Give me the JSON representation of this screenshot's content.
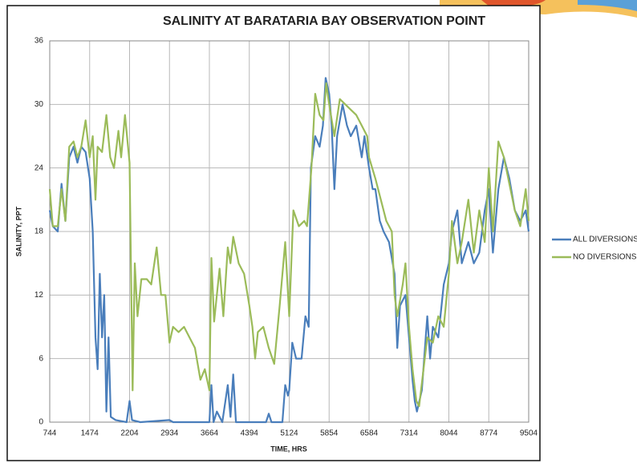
{
  "chart_data": {
    "type": "line",
    "title": "SALINITY AT BARATARIA BAY OBSERVATION POINT",
    "x_label": "TIME, HRS",
    "y_label": "SALINITY, PPT",
    "xlim": [
      744,
      9504
    ],
    "xticks": [
      744,
      1474,
      2204,
      2934,
      3664,
      4394,
      5124,
      5854,
      6584,
      7314,
      8044,
      8774,
      9504
    ],
    "ylim": [
      0,
      36
    ],
    "yticks": [
      0,
      6,
      12,
      18,
      24,
      30,
      36
    ],
    "grid": true,
    "legend": "right",
    "series": [
      {
        "name": "ALL DIVERSIONS",
        "color": "#4a7ebb",
        "x": [
          744,
          800,
          890,
          960,
          1030,
          1100,
          1180,
          1250,
          1320,
          1400,
          1474,
          1530,
          1580,
          1620,
          1660,
          1700,
          1740,
          1780,
          1820,
          1860,
          1950,
          2050,
          2150,
          2204,
          2250,
          2400,
          2934,
          3000,
          3600,
          3664,
          3700,
          3740,
          3800,
          3900,
          4000,
          4050,
          4100,
          4150,
          4394,
          4700,
          4750,
          4800,
          5000,
          5050,
          5100,
          5124,
          5180,
          5250,
          5350,
          5420,
          5480,
          5520,
          5600,
          5680,
          5740,
          5790,
          5854,
          5900,
          5950,
          6000,
          6100,
          6180,
          6250,
          6350,
          6450,
          6500,
          6584,
          6650,
          6700,
          6780,
          6850,
          6950,
          7050,
          7100,
          7150,
          7250,
          7314,
          7380,
          7420,
          7460,
          7550,
          7650,
          7700,
          7750,
          7850,
          7950,
          8044,
          8100,
          8200,
          8280,
          8400,
          8500,
          8600,
          8700,
          8774,
          8850,
          8950,
          9050,
          9150,
          9250,
          9350,
          9450,
          9504
        ],
        "values": [
          20,
          18.5,
          18,
          22.5,
          19,
          25,
          26,
          24.5,
          26,
          25.5,
          23,
          18,
          8,
          5,
          14,
          8,
          12,
          1,
          8,
          0.5,
          0.2,
          0.1,
          0,
          2,
          0.2,
          0,
          0.2,
          0,
          0,
          0,
          3.5,
          0,
          1,
          0,
          3.5,
          0.5,
          4.5,
          0,
          0,
          0,
          0.8,
          0,
          0,
          3.5,
          2.5,
          3,
          7.5,
          6,
          6,
          10,
          9,
          24,
          27,
          26,
          28,
          32.5,
          31,
          28,
          22,
          27,
          30,
          28,
          27,
          28,
          25,
          27,
          24,
          22,
          22,
          19,
          18,
          17,
          14,
          7,
          11,
          12,
          8,
          4,
          2,
          1,
          3,
          10,
          6,
          9,
          8,
          13,
          15,
          18,
          20,
          15,
          17,
          15,
          16,
          20,
          22,
          16,
          22,
          25,
          23,
          20,
          19,
          20,
          18
        ]
      },
      {
        "name": "NO DIVERSIONS",
        "color": "#9bbb59",
        "x": [
          744,
          800,
          890,
          960,
          1030,
          1100,
          1180,
          1250,
          1320,
          1400,
          1474,
          1530,
          1580,
          1620,
          1700,
          1780,
          1850,
          1920,
          2000,
          2050,
          2120,
          2204,
          2260,
          2300,
          2350,
          2420,
          2520,
          2600,
          2700,
          2780,
          2860,
          2934,
          3000,
          3100,
          3200,
          3300,
          3400,
          3500,
          3580,
          3664,
          3700,
          3750,
          3850,
          3920,
          4000,
          4050,
          4100,
          4200,
          4300,
          4394,
          4450,
          4500,
          4550,
          4650,
          4750,
          4850,
          4950,
          5050,
          5124,
          5200,
          5300,
          5400,
          5450,
          5530,
          5600,
          5680,
          5750,
          5800,
          5854,
          5950,
          6050,
          6150,
          6250,
          6350,
          6450,
          6550,
          6584,
          6700,
          6800,
          6900,
          7000,
          7050,
          7100,
          7200,
          7250,
          7314,
          7380,
          7450,
          7500,
          7580,
          7650,
          7750,
          7850,
          7950,
          8044,
          8100,
          8200,
          8280,
          8400,
          8500,
          8600,
          8700,
          8774,
          8850,
          8950,
          9050,
          9150,
          9250,
          9350,
          9450,
          9504
        ],
        "values": [
          22,
          18.5,
          18.5,
          22,
          19,
          26,
          26.5,
          25,
          26,
          28.5,
          25,
          27,
          21,
          26,
          25.5,
          29,
          25,
          24,
          27.5,
          25,
          29,
          24.5,
          3,
          15,
          10,
          13.5,
          13.5,
          13,
          16.5,
          12,
          12,
          7.5,
          9,
          8.5,
          9,
          8,
          7,
          4,
          5,
          3,
          15.5,
          9.5,
          14.5,
          10,
          16.5,
          15,
          17.5,
          15,
          14,
          11,
          9,
          6,
          8.5,
          9,
          7,
          5.5,
          11,
          17,
          10,
          20,
          18.5,
          19,
          18.5,
          24,
          31,
          29,
          28.5,
          32,
          30,
          27,
          30.5,
          30,
          29.5,
          29,
          28,
          27,
          25,
          23,
          21,
          19,
          18,
          12,
          10,
          13,
          15,
          9,
          5,
          2,
          1.5,
          5,
          8,
          7.5,
          10,
          9,
          14,
          19,
          15,
          17,
          21,
          16,
          20,
          17,
          24,
          18,
          26.5,
          25,
          22.5,
          20,
          18.5,
          22,
          19
        ]
      }
    ]
  }
}
